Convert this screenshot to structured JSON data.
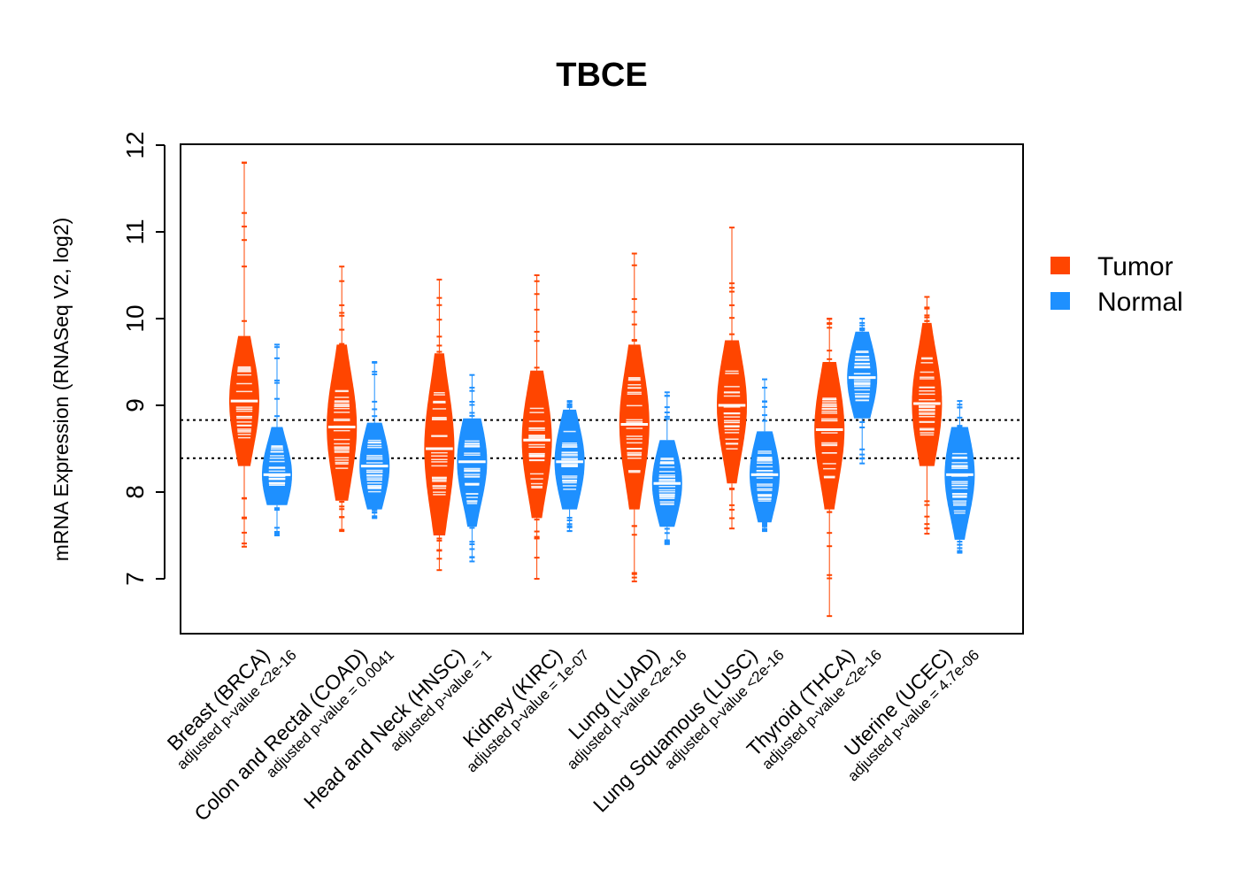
{
  "chart_data": {
    "type": "violin",
    "title": "TBCE",
    "ylabel": "mRNA Expression (RNASeq V2, log2)",
    "xlabel": "",
    "ylim": [
      6.45,
      12.08
    ],
    "yticks": [
      7,
      8,
      9,
      10,
      11,
      12
    ],
    "reference_lines": [
      8.83,
      8.39
    ],
    "legend": {
      "position": "right",
      "entries": [
        "Tumor",
        "Normal"
      ]
    },
    "colors": {
      "Tumor": "#FF4500",
      "Normal": "#1E90FF"
    },
    "groups": [
      {
        "cancer": "Breast (BRCA)",
        "pvalue": "adjusted p-value <2e-16",
        "tumor": {
          "median": 9.05,
          "min": 7.37,
          "max": 11.8,
          "body": [
            8.3,
            9.8
          ]
        },
        "normal": {
          "median": 8.2,
          "min": 7.5,
          "max": 9.7,
          "body": [
            7.85,
            8.75
          ]
        }
      },
      {
        "cancer": "Colon and Rectal (COAD)",
        "pvalue": "adjusted p-value = 0.0041",
        "tumor": {
          "median": 8.75,
          "min": 7.55,
          "max": 10.6,
          "body": [
            7.9,
            9.7
          ]
        },
        "normal": {
          "median": 8.3,
          "min": 7.7,
          "max": 9.5,
          "body": [
            7.8,
            8.8
          ]
        }
      },
      {
        "cancer": "Head and Neck (HNSC)",
        "pvalue": "adjusted p-value = 1",
        "tumor": {
          "median": 8.5,
          "min": 7.1,
          "max": 10.45,
          "body": [
            7.5,
            9.6
          ]
        },
        "normal": {
          "median": 8.35,
          "min": 7.2,
          "max": 9.35,
          "body": [
            7.6,
            8.85
          ]
        }
      },
      {
        "cancer": "Kidney (KIRC)",
        "pvalue": "adjusted p-value = 1e-07",
        "tumor": {
          "median": 8.6,
          "min": 7.0,
          "max": 10.5,
          "body": [
            7.7,
            9.4
          ]
        },
        "normal": {
          "median": 8.35,
          "min": 7.55,
          "max": 9.05,
          "body": [
            7.8,
            8.95
          ]
        }
      },
      {
        "cancer": "Lung (LUAD)",
        "pvalue": "adjusted p-value <2e-16",
        "tumor": {
          "median": 8.78,
          "min": 6.97,
          "max": 10.75,
          "body": [
            7.8,
            9.7
          ]
        },
        "normal": {
          "median": 8.1,
          "min": 7.4,
          "max": 9.15,
          "body": [
            7.6,
            8.6
          ]
        }
      },
      {
        "cancer": "Lung Squamous (LUSC)",
        "pvalue": "adjusted p-value <2e-16",
        "tumor": {
          "median": 9.0,
          "min": 7.58,
          "max": 11.05,
          "body": [
            8.1,
            9.75
          ]
        },
        "normal": {
          "median": 8.2,
          "min": 7.55,
          "max": 9.3,
          "body": [
            7.65,
            8.7
          ]
        }
      },
      {
        "cancer": "Thyroid (THCA)",
        "pvalue": "adjusted p-value <2e-16",
        "tumor": {
          "median": 8.72,
          "min": 6.57,
          "max": 10.0,
          "body": [
            7.8,
            9.5
          ]
        },
        "normal": {
          "median": 9.32,
          "min": 8.33,
          "max": 10.0,
          "body": [
            8.85,
            9.85
          ]
        }
      },
      {
        "cancer": "Uterine (UCEC)",
        "pvalue": "adjusted p-value = 4.7e-06",
        "tumor": {
          "median": 9.02,
          "min": 7.52,
          "max": 10.25,
          "body": [
            8.3,
            9.95
          ]
        },
        "normal": {
          "median": 8.2,
          "min": 7.3,
          "max": 9.05,
          "body": [
            7.45,
            8.75
          ]
        }
      }
    ]
  }
}
